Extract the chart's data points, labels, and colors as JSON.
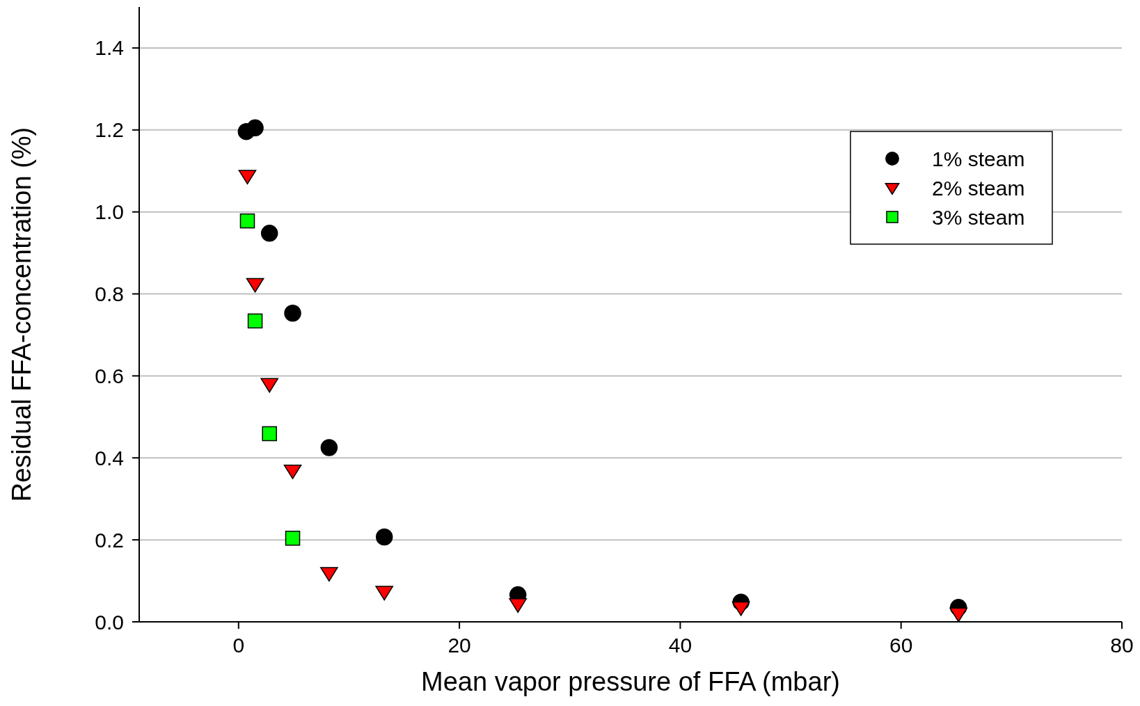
{
  "chart_data": {
    "type": "scatter",
    "xlabel": "Mean vapor pressure of FFA (mbar)",
    "ylabel": "Residual FFA-concentration (%)",
    "xlim": [
      -9,
      80
    ],
    "xticks": [
      0,
      20,
      40,
      60,
      80
    ],
    "ylim": [
      0,
      1.5
    ],
    "yticks": [
      {
        "value": 0,
        "label": "0.0"
      },
      {
        "value": 0.2,
        "label": "0.2"
      },
      {
        "value": 0.4,
        "label": "0.4"
      },
      {
        "value": 0.6,
        "label": "0.6"
      },
      {
        "value": 0.8,
        "label": "0.8"
      },
      {
        "value": 1,
        "label": "1.0"
      },
      {
        "value": 1.2,
        "label": "1.2"
      },
      {
        "value": 1.4,
        "label": "1.4"
      }
    ],
    "grid": "y",
    "legend": "top right",
    "series": [
      {
        "name": "1% steam",
        "color": "#000000",
        "marker": "circle",
        "x": [
          0.7,
          1.5,
          2.8,
          4.9,
          8.2,
          13.2,
          25.3,
          45.5,
          65.2
        ],
        "values": [
          1.196,
          1.205,
          0.948,
          0.753,
          0.425,
          0.207,
          0.066,
          0.048,
          0.035
        ]
      },
      {
        "name": "2% steam",
        "color": "#ff0000",
        "marker": "triangle",
        "x": [
          0.8,
          1.5,
          2.8,
          4.9,
          8.2,
          13.2,
          25.3,
          45.5,
          65.2
        ],
        "values": [
          1.088,
          0.824,
          0.58,
          0.369,
          0.119,
          0.073,
          0.043,
          0.035,
          0.02
        ]
      },
      {
        "name": "3% steam",
        "color": "#00ff00",
        "marker": "square",
        "x": [
          0.8,
          1.5,
          2.8,
          4.9
        ],
        "values": [
          0.978,
          0.734,
          0.459,
          0.204
        ]
      }
    ]
  }
}
